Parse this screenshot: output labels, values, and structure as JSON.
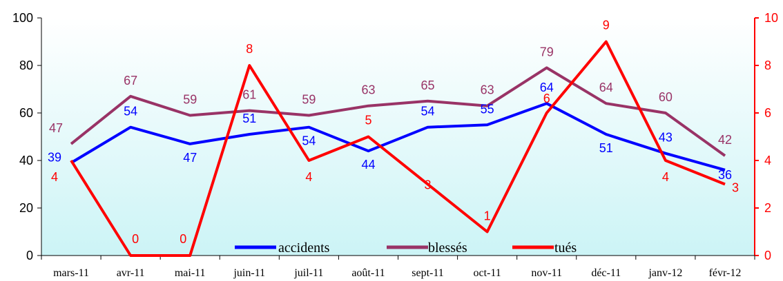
{
  "chart_data": {
    "type": "line",
    "categories": [
      "mars-11",
      "avr-11",
      "mai-11",
      "juin-11",
      "juil-11",
      "août-11",
      "sept-11",
      "oct-11",
      "nov-11",
      "déc-11",
      "janv-12",
      "févr-12"
    ],
    "series": [
      {
        "name": "accidents",
        "axis": "left",
        "color": "#0000ff",
        "values": [
          39,
          54,
          47,
          51,
          54,
          44,
          54,
          55,
          64,
          51,
          43,
          36
        ]
      },
      {
        "name": "blessés",
        "axis": "left",
        "color": "#993366",
        "values": [
          47,
          67,
          59,
          61,
          59,
          63,
          65,
          63,
          79,
          64,
          60,
          42
        ]
      },
      {
        "name": "tués",
        "axis": "right",
        "color": "#ff0000",
        "values": [
          4,
          0,
          0,
          8,
          4,
          5,
          3,
          1,
          6,
          9,
          4,
          3
        ]
      }
    ],
    "y_left": {
      "min": 0,
      "max": 100,
      "ticks": [
        "0",
        "20",
        "40",
        "60",
        "80",
        "100"
      ]
    },
    "y_right": {
      "min": 0,
      "max": 10,
      "ticks": [
        "0",
        "2",
        "4",
        "6",
        "8",
        "10"
      ]
    },
    "background": "gradient white to light cyan",
    "legend_position": "bottom-inside",
    "grid": false
  }
}
